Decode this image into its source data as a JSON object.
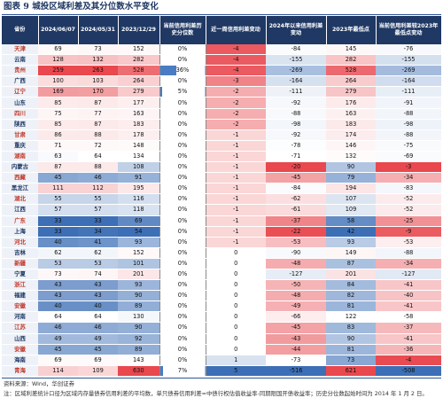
{
  "title": "图表 9   城投区域利差及其分位数水平变化",
  "headers": [
    "省份",
    "2024/06/07",
    "2024/05/31",
    "2023/12/29",
    "当前信用利差历史分位数",
    "近一周信用利差变动",
    "2024年以来信用利差变动",
    "2023年最低点",
    "当前信用利差较2023年最低点变动"
  ],
  "chart_data": {
    "type": "heatmap",
    "columns": [
      "省份",
      "2024/06/07",
      "2024/05/31",
      "2023/12/29",
      "当前信用利差历史分位数",
      "近一周信用利差变动",
      "2024年以来信用利差变动",
      "2023年最低点",
      "当前信用利差较2023年最低点变动"
    ],
    "rows": [
      {
        "province": "天津",
        "v0607": 69,
        "v0531": 73,
        "v1229": 152,
        "pct": "0%",
        "wk": -4,
        "ytd": -84,
        "low2023": 145,
        "vslow": -76
      },
      {
        "province": "云南",
        "v0607": 128,
        "v0531": 132,
        "v1229": 282,
        "pct": "0%",
        "wk": -4,
        "ytd": -155,
        "low2023": 282,
        "vslow": -155
      },
      {
        "province": "贵州",
        "v0607": 259,
        "v0531": 263,
        "v1229": 528,
        "pct": "36%",
        "wk": -4,
        "ytd": -269,
        "low2023": 528,
        "vslow": -269
      },
      {
        "province": "广西",
        "v0607": 100,
        "v0531": 103,
        "v1229": 264,
        "pct": "0%",
        "wk": -3,
        "ytd": -164,
        "low2023": 264,
        "vslow": -164
      },
      {
        "province": "辽宁",
        "v0607": 169,
        "v0531": 170,
        "v1229": 279,
        "pct": "5%",
        "wk": -2,
        "ytd": -111,
        "low2023": 279,
        "vslow": -111
      },
      {
        "province": "山东",
        "v0607": 85,
        "v0531": 87,
        "v1229": 177,
        "pct": "0%",
        "wk": -2,
        "ytd": -92,
        "low2023": 176,
        "vslow": -91
      },
      {
        "province": "四川",
        "v0607": 75,
        "v0531": 77,
        "v1229": 163,
        "pct": "0%",
        "wk": -2,
        "ytd": -88,
        "low2023": 163,
        "vslow": -88
      },
      {
        "province": "陕西",
        "v0607": 85,
        "v0531": 87,
        "v1229": 183,
        "pct": "0%",
        "wk": -2,
        "ytd": -98,
        "low2023": 183,
        "vslow": -98
      },
      {
        "province": "甘肃",
        "v0607": 86,
        "v0531": 88,
        "v1229": 178,
        "pct": "0%",
        "wk": -1,
        "ytd": -92,
        "low2023": 174,
        "vslow": -88
      },
      {
        "province": "重庆",
        "v0607": 71,
        "v0531": 72,
        "v1229": 148,
        "pct": "0%",
        "wk": -1,
        "ytd": -78,
        "low2023": 146,
        "vslow": -75
      },
      {
        "province": "湖南",
        "v0607": 63,
        "v0531": 64,
        "v1229": 134,
        "pct": "0%",
        "wk": -1,
        "ytd": -71,
        "low2023": 132,
        "vslow": -69
      },
      {
        "province": "内蒙古",
        "v0607": 87,
        "v0531": 88,
        "v1229": 108,
        "pct": "0%",
        "wk": -1,
        "ytd": -20,
        "low2023": 90,
        "vslow": -3
      },
      {
        "province": "西藏",
        "v0607": 45,
        "v0531": 46,
        "v1229": 91,
        "pct": "0%",
        "wk": -1,
        "ytd": -45,
        "low2023": 79,
        "vslow": -34
      },
      {
        "province": "黑龙江",
        "v0607": 111,
        "v0531": 112,
        "v1229": 195,
        "pct": "0%",
        "wk": -1,
        "ytd": -84,
        "low2023": 194,
        "vslow": -83
      },
      {
        "province": "湖北",
        "v0607": 55,
        "v0531": 55,
        "v1229": 116,
        "pct": "0%",
        "wk": -1,
        "ytd": -62,
        "low2023": 107,
        "vslow": -52
      },
      {
        "province": "江西",
        "v0607": 57,
        "v0531": 57,
        "v1229": 118,
        "pct": "0%",
        "wk": -1,
        "ytd": -61,
        "low2023": 109,
        "vslow": -52
      },
      {
        "province": "广东",
        "v0607": 33,
        "v0531": 33,
        "v1229": 69,
        "pct": "0%",
        "wk": -1,
        "ytd": -37,
        "low2023": 58,
        "vslow": -25
      },
      {
        "province": "上海",
        "v0607": 33,
        "v0531": 34,
        "v1229": 54,
        "pct": "0%",
        "wk": -1,
        "ytd": -22,
        "low2023": 42,
        "vslow": -9
      },
      {
        "province": "河北",
        "v0607": 40,
        "v0531": 41,
        "v1229": 93,
        "pct": "0%",
        "wk": -1,
        "ytd": -53,
        "low2023": 93,
        "vslow": -53
      },
      {
        "province": "吉林",
        "v0607": 62,
        "v0531": 62,
        "v1229": 152,
        "pct": "0%",
        "wk": 0,
        "ytd": -90,
        "low2023": 149,
        "vslow": -88
      },
      {
        "province": "新疆",
        "v0607": 53,
        "v0531": 53,
        "v1229": 101,
        "pct": "0%",
        "wk": 0,
        "ytd": -48,
        "low2023": 87,
        "vslow": -34
      },
      {
        "province": "宁夏",
        "v0607": 73,
        "v0531": 74,
        "v1229": 201,
        "pct": "0%",
        "wk": 0,
        "ytd": -127,
        "low2023": 201,
        "vslow": -127
      },
      {
        "province": "浙江",
        "v0607": 43,
        "v0531": 43,
        "v1229": 93,
        "pct": "0%",
        "wk": 0,
        "ytd": -50,
        "low2023": 84,
        "vslow": -41
      },
      {
        "province": "福建",
        "v0607": 43,
        "v0531": 43,
        "v1229": 90,
        "pct": "0%",
        "wk": 0,
        "ytd": -48,
        "low2023": 82,
        "vslow": -40
      },
      {
        "province": "安徽",
        "v0607": 40,
        "v0531": 40,
        "v1229": 89,
        "pct": "0%",
        "wk": 0,
        "ytd": -49,
        "low2023": 81,
        "vslow": -41
      },
      {
        "province": "河南",
        "v0607": 64,
        "v0531": 64,
        "v1229": 130,
        "pct": "0%",
        "wk": 0,
        "ytd": -66,
        "low2023": 122,
        "vslow": -58
      },
      {
        "province": "江苏",
        "v0607": 46,
        "v0531": 46,
        "v1229": 90,
        "pct": "0%",
        "wk": 0,
        "ytd": -45,
        "low2023": 83,
        "vslow": -37
      },
      {
        "province": "山西",
        "v0607": 49,
        "v0531": 49,
        "v1229": 92,
        "pct": "0%",
        "wk": 0,
        "ytd": -43,
        "low2023": 90,
        "vslow": -41
      },
      {
        "province": "安徽",
        "v0607": 45,
        "v0531": 45,
        "v1229": 89,
        "pct": "0%",
        "wk": 0,
        "ytd": -44,
        "low2023": 81,
        "vslow": -36
      },
      {
        "province": "海南",
        "v0607": 69,
        "v0531": 69,
        "v1229": 143,
        "pct": "0%",
        "wk": 1,
        "ytd": -73,
        "low2023": 73,
        "vslow": -4
      },
      {
        "province": "青海",
        "v0607": 114,
        "v0531": 109,
        "v1229": 630,
        "pct": "7%",
        "wk": 5,
        "ytd": -516,
        "low2023": 621,
        "vslow": -508
      }
    ]
  },
  "source": "资料来源：Wind，华创证券",
  "note": "注：区域利差统计口径为区域内存量债券信用利差的平均数，单只债券信用利差=中债行权估值收益率-同期限国开债收益率；历史分位数起始时间为 2014 年 1 月 2 日。",
  "colors": {
    "header_bg": "#1f3864",
    "red": "#e8484e",
    "blue": "#3d6fb6",
    "pct_bar": "#4a7cc4"
  }
}
